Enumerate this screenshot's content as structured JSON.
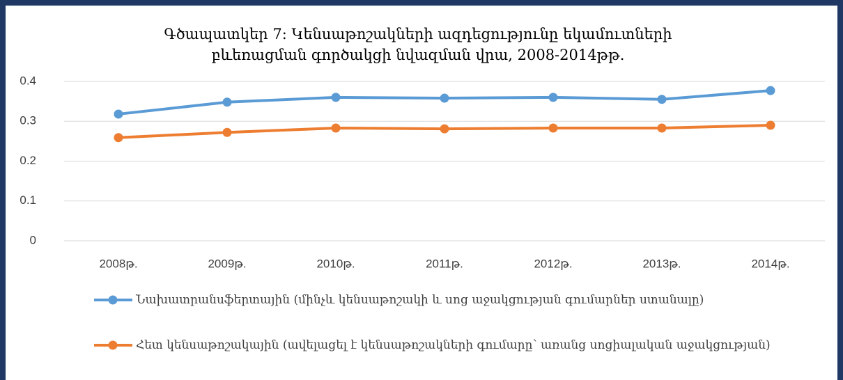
{
  "chart_data": {
    "type": "line",
    "title": "Գծապատկեր 7: Կենսաթոշակների ազդեցությունը եկամուտների բևեռացման գործակցի նվազման վրա, 2008-2014թթ.",
    "categories": [
      "2008թ.",
      "2009թ.",
      "2010թ.",
      "2011թ.",
      "2012թ.",
      "2013թ.",
      "2014թ."
    ],
    "series": [
      {
        "name": "Նախատրանսֆերտային (մինչև կենսաթոշակի և սոց աջակցության գումարներ ստանալը)",
        "color": "#5b9bd5",
        "values": [
          0.318,
          0.348,
          0.36,
          0.358,
          0.36,
          0.355,
          0.377
        ]
      },
      {
        "name": "Հետ կենսաթոշակային (ավելացել է կենսաթոշակների գումարը՝ առանց սոցիալական աջակցության)",
        "color": "#ed7d31",
        "values": [
          0.259,
          0.272,
          0.283,
          0.281,
          0.283,
          0.283,
          0.29
        ]
      }
    ],
    "ylim": [
      0,
      0.4
    ],
    "yticks": [
      0,
      0.1,
      0.2,
      0.3,
      0.4
    ],
    "grid": true,
    "legend": "bottom"
  }
}
